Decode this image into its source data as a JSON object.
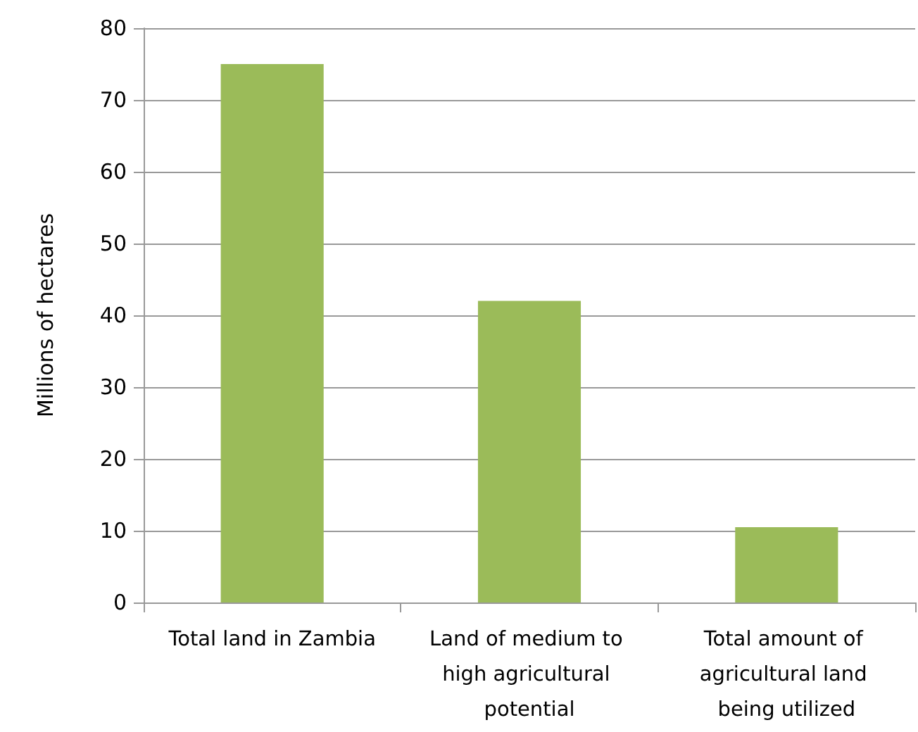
{
  "chart_data": {
    "type": "bar",
    "ylabel": "Millions of hectares",
    "categories": [
      "Total land in Zambia",
      "Land of medium to high agricultural potential",
      "Total amount of agricultural land being utilized"
    ],
    "values": [
      75,
      42,
      10.5
    ],
    "color": "#9bbb59",
    "ylim": [
      0,
      80
    ],
    "yticks": [
      0,
      10,
      20,
      30,
      40,
      50,
      60,
      70,
      80
    ],
    "grid": "y"
  }
}
